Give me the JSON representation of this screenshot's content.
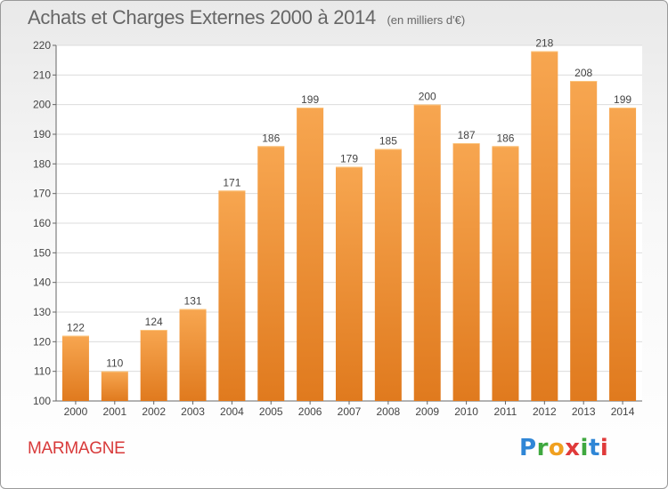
{
  "header": {
    "title": "Achats et Charges Externes 2000 à 2014",
    "unit": "(en milliers d'€)"
  },
  "footer": {
    "commune": "MARMAGNE",
    "logo": "Proxiti"
  },
  "colors": {
    "bar_top": "#f7a650",
    "bar_bottom": "#e07a1e",
    "title": "#666666",
    "commune": "#d83a3a"
  },
  "chart_data": {
    "type": "bar",
    "title": "Achats et Charges Externes 2000 à 2014",
    "subtitle": "(en milliers d'€)",
    "categories": [
      "2000",
      "2001",
      "2002",
      "2003",
      "2004",
      "2005",
      "2006",
      "2007",
      "2008",
      "2009",
      "2010",
      "2011",
      "2012",
      "2013",
      "2014"
    ],
    "values": [
      122,
      110,
      124,
      131,
      171,
      186,
      199,
      179,
      185,
      200,
      187,
      186,
      218,
      208,
      199
    ],
    "ylim": [
      100,
      220
    ],
    "yticks": [
      100,
      110,
      120,
      130,
      140,
      150,
      160,
      170,
      180,
      190,
      200,
      210,
      220
    ],
    "grid": true,
    "data_labels": true
  }
}
